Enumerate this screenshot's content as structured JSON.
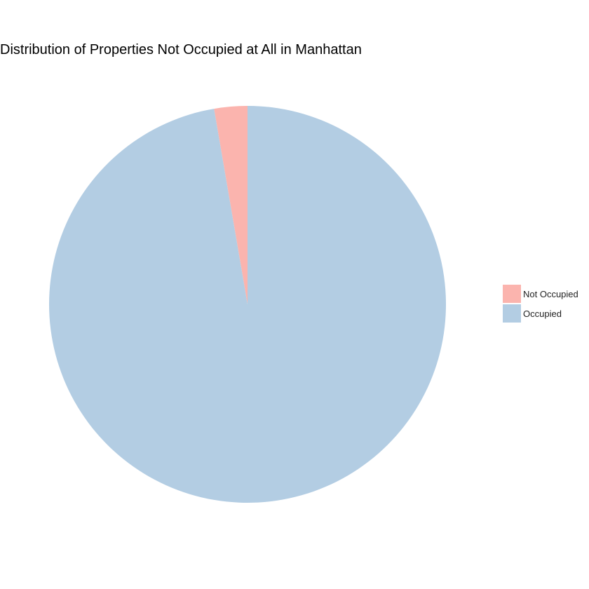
{
  "chart_data": {
    "type": "pie",
    "title": "Distribution of Properties Not Occupied at All in Manhattan",
    "categories": [
      "Not Occupied",
      "Occupied"
    ],
    "values": [
      2.7,
      97.3
    ],
    "colors": [
      "#FBB4AE",
      "#B3CDE3"
    ],
    "legend": {
      "placement": "right",
      "entries": [
        "Not Occupied",
        "Occupied"
      ]
    },
    "grid": false
  }
}
